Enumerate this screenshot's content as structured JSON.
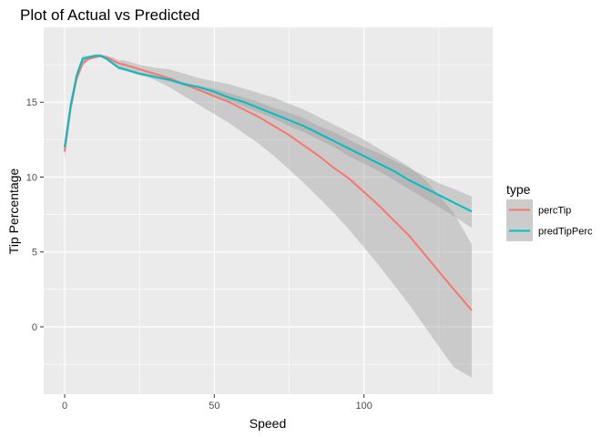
{
  "chart_data": {
    "type": "line",
    "title": "Plot of Actual vs Predicted",
    "xlabel": "Speed",
    "ylabel": "Tip Percentage",
    "xlim": [
      -7,
      143
    ],
    "ylim": [
      -4.5,
      20
    ],
    "xticks": [
      0,
      50,
      100
    ],
    "yticks": [
      0,
      5,
      10,
      15
    ],
    "grid": true,
    "legend": {
      "title": "type",
      "position": "right"
    },
    "series": [
      {
        "name": "percTip",
        "color": "#F8766D",
        "x": [
          0,
          2,
          4,
          6,
          8,
          10,
          12,
          14,
          16,
          18,
          20,
          25,
          30,
          35,
          40,
          45,
          50,
          55,
          60,
          65,
          70,
          75,
          80,
          85,
          90,
          95,
          100,
          105,
          110,
          115,
          120,
          125,
          130,
          136
        ],
        "y": [
          11.7,
          14.6,
          16.6,
          17.6,
          17.9,
          18.0,
          18.1,
          18.0,
          17.8,
          17.6,
          17.5,
          17.2,
          16.9,
          16.6,
          16.2,
          15.8,
          15.4,
          15.0,
          14.5,
          14.0,
          13.4,
          12.8,
          12.1,
          11.4,
          10.6,
          9.9,
          9.0,
          8.1,
          7.1,
          6.1,
          4.9,
          3.7,
          2.5,
          1.1
        ],
        "lower": [
          11.2,
          14.2,
          16.3,
          17.4,
          17.8,
          17.9,
          18.0,
          17.9,
          17.6,
          17.4,
          17.2,
          16.9,
          16.5,
          16.0,
          15.4,
          14.8,
          14.2,
          13.6,
          12.9,
          12.2,
          11.4,
          10.5,
          9.6,
          8.6,
          7.6,
          6.5,
          5.3,
          4.1,
          2.8,
          1.5,
          0.1,
          -1.3,
          -2.7,
          -3.4
        ],
        "upper": [
          12.2,
          15.0,
          16.9,
          17.8,
          18.0,
          18.1,
          18.2,
          18.1,
          18.0,
          17.8,
          17.8,
          17.5,
          17.3,
          17.2,
          16.9,
          16.6,
          16.4,
          16.2,
          15.9,
          15.6,
          15.3,
          14.9,
          14.5,
          14.0,
          13.5,
          13.0,
          12.5,
          11.9,
          11.3,
          10.7,
          9.9,
          8.8,
          7.6,
          5.5
        ]
      },
      {
        "name": "predTipPerc",
        "color": "#00BFC4",
        "x": [
          0,
          2,
          4,
          6,
          8,
          10,
          12,
          14,
          16,
          18,
          20,
          25,
          30,
          35,
          40,
          45,
          50,
          55,
          60,
          65,
          70,
          75,
          80,
          85,
          90,
          95,
          100,
          105,
          110,
          115,
          120,
          125,
          130,
          136
        ],
        "y": [
          12.0,
          14.8,
          16.8,
          17.9,
          18.0,
          18.1,
          18.1,
          17.9,
          17.6,
          17.3,
          17.2,
          16.9,
          16.7,
          16.5,
          16.2,
          16.0,
          15.7,
          15.3,
          15.0,
          14.6,
          14.2,
          13.8,
          13.4,
          12.9,
          12.4,
          11.9,
          11.4,
          10.9,
          10.4,
          9.8,
          9.3,
          8.8,
          8.3,
          7.7
        ],
        "lower": [
          11.6,
          14.5,
          16.6,
          17.7,
          17.9,
          18.0,
          18.0,
          17.8,
          17.5,
          17.2,
          17.1,
          16.8,
          16.6,
          16.4,
          16.1,
          15.8,
          15.5,
          15.1,
          14.7,
          14.3,
          13.9,
          13.4,
          13.0,
          12.5,
          12.0,
          11.4,
          10.9,
          10.4,
          9.8,
          9.2,
          8.6,
          8.0,
          7.4,
          6.6
        ],
        "upper": [
          12.4,
          15.1,
          17.0,
          18.1,
          18.1,
          18.2,
          18.2,
          18.0,
          17.7,
          17.4,
          17.3,
          17.0,
          16.8,
          16.6,
          16.3,
          16.1,
          15.9,
          15.6,
          15.3,
          15.0,
          14.6,
          14.3,
          13.9,
          13.4,
          13.0,
          12.5,
          12.0,
          11.6,
          11.1,
          10.6,
          10.1,
          9.6,
          9.2,
          8.7
        ]
      }
    ]
  }
}
